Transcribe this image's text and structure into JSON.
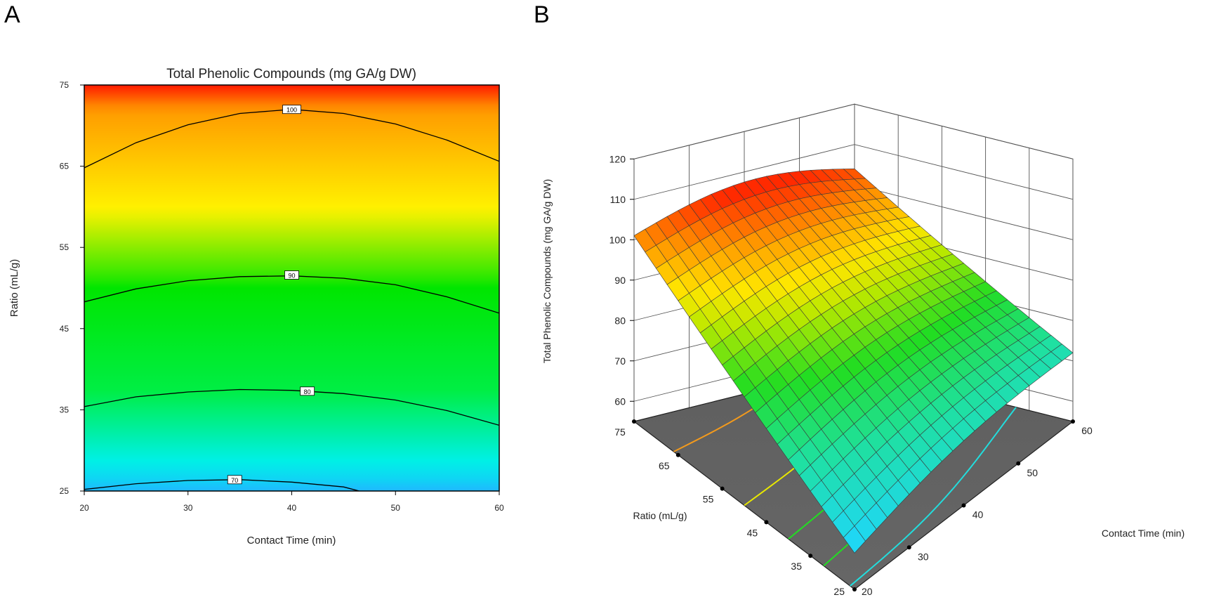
{
  "panels": {
    "a_label": "A",
    "b_label": "B"
  },
  "chart_data": [
    {
      "type": "heatmap",
      "subtype": "contour",
      "title": "Total Phenolic Compounds (mg GA/g DW)",
      "xlabel": "Contact Time (min)",
      "ylabel": "Ratio (mL/g)",
      "xlim": [
        20,
        60
      ],
      "ylim": [
        25,
        75
      ],
      "x_ticks": [
        20,
        30,
        40,
        50,
        60
      ],
      "y_ticks": [
        25,
        35,
        45,
        55,
        65,
        75
      ],
      "color_scale": [
        {
          "value": 68,
          "color": "#1fb8ff"
        },
        {
          "value": 72,
          "color": "#00f0e8"
        },
        {
          "value": 80,
          "color": "#00ee44"
        },
        {
          "value": 89,
          "color": "#00e600"
        },
        {
          "value": 94,
          "color": "#fff200"
        },
        {
          "value": 100,
          "color": "#ff9a00"
        },
        {
          "value": 106,
          "color": "#ff1a00"
        }
      ],
      "contours": [
        {
          "level": 70,
          "label": "70",
          "x": [
            20,
            25,
            30,
            35,
            40,
            45,
            46.5
          ],
          "y": [
            25.2,
            25.9,
            26.3,
            26.4,
            26.1,
            25.5,
            25
          ]
        },
        {
          "level": 80,
          "label": "80",
          "x": [
            20,
            25,
            30,
            35,
            40,
            45,
            50,
            55,
            60
          ],
          "y": [
            35.4,
            36.6,
            37.2,
            37.5,
            37.4,
            37.0,
            36.2,
            34.9,
            33.1
          ]
        },
        {
          "level": 90,
          "label": "90",
          "x": [
            20,
            25,
            30,
            35,
            40,
            45,
            50,
            55,
            60
          ],
          "y": [
            48.3,
            49.9,
            50.9,
            51.4,
            51.5,
            51.2,
            50.4,
            48.9,
            46.9
          ]
        },
        {
          "level": 100,
          "label": "100",
          "x": [
            20,
            25,
            30,
            35,
            40,
            45,
            50,
            55,
            60
          ],
          "y": [
            64.8,
            67.9,
            70.1,
            71.5,
            72.0,
            71.5,
            70.2,
            68.2,
            65.6
          ]
        }
      ],
      "contour_label_positions": [
        {
          "label": "100",
          "x": 40,
          "y": 72.0
        },
        {
          "label": "90",
          "x": 40,
          "y": 51.6
        },
        {
          "label": "80",
          "x": 41.5,
          "y": 37.3
        },
        {
          "label": "70",
          "x": 34.5,
          "y": 26.4
        }
      ]
    },
    {
      "type": "surface",
      "zlabel": "Total Phenolic Compounds (mg GA/g DW)",
      "xlabel": "Contact Time (min)",
      "ylabel": "Ratio (mL/g)",
      "x_range": [
        20,
        60
      ],
      "y_range": [
        25,
        75
      ],
      "z_range": [
        55,
        120
      ],
      "x_ticks": [
        20,
        30,
        40,
        50,
        60
      ],
      "y_ticks": [
        25,
        35,
        45,
        55,
        65,
        75
      ],
      "z_ticks": [
        60,
        70,
        80,
        90,
        100,
        110,
        120
      ],
      "grid_divisions": 20,
      "corner_values": [
        {
          "contact_time": 20,
          "ratio": 75,
          "tpc": 101
        },
        {
          "contact_time": 60,
          "ratio": 75,
          "tpc": 104
        },
        {
          "contact_time": 20,
          "ratio": 25,
          "tpc": 64
        },
        {
          "contact_time": 60,
          "ratio": 25,
          "tpc": 72
        }
      ],
      "floor_contours": [
        {
          "level": 100,
          "color": "#f39a1c"
        },
        {
          "level": 90,
          "color": "#e8e800"
        },
        {
          "level": 80,
          "color": "#22dd22"
        },
        {
          "level": 75,
          "color": "#22dd22"
        },
        {
          "level": 70,
          "color": "#22dddd"
        }
      ]
    }
  ]
}
